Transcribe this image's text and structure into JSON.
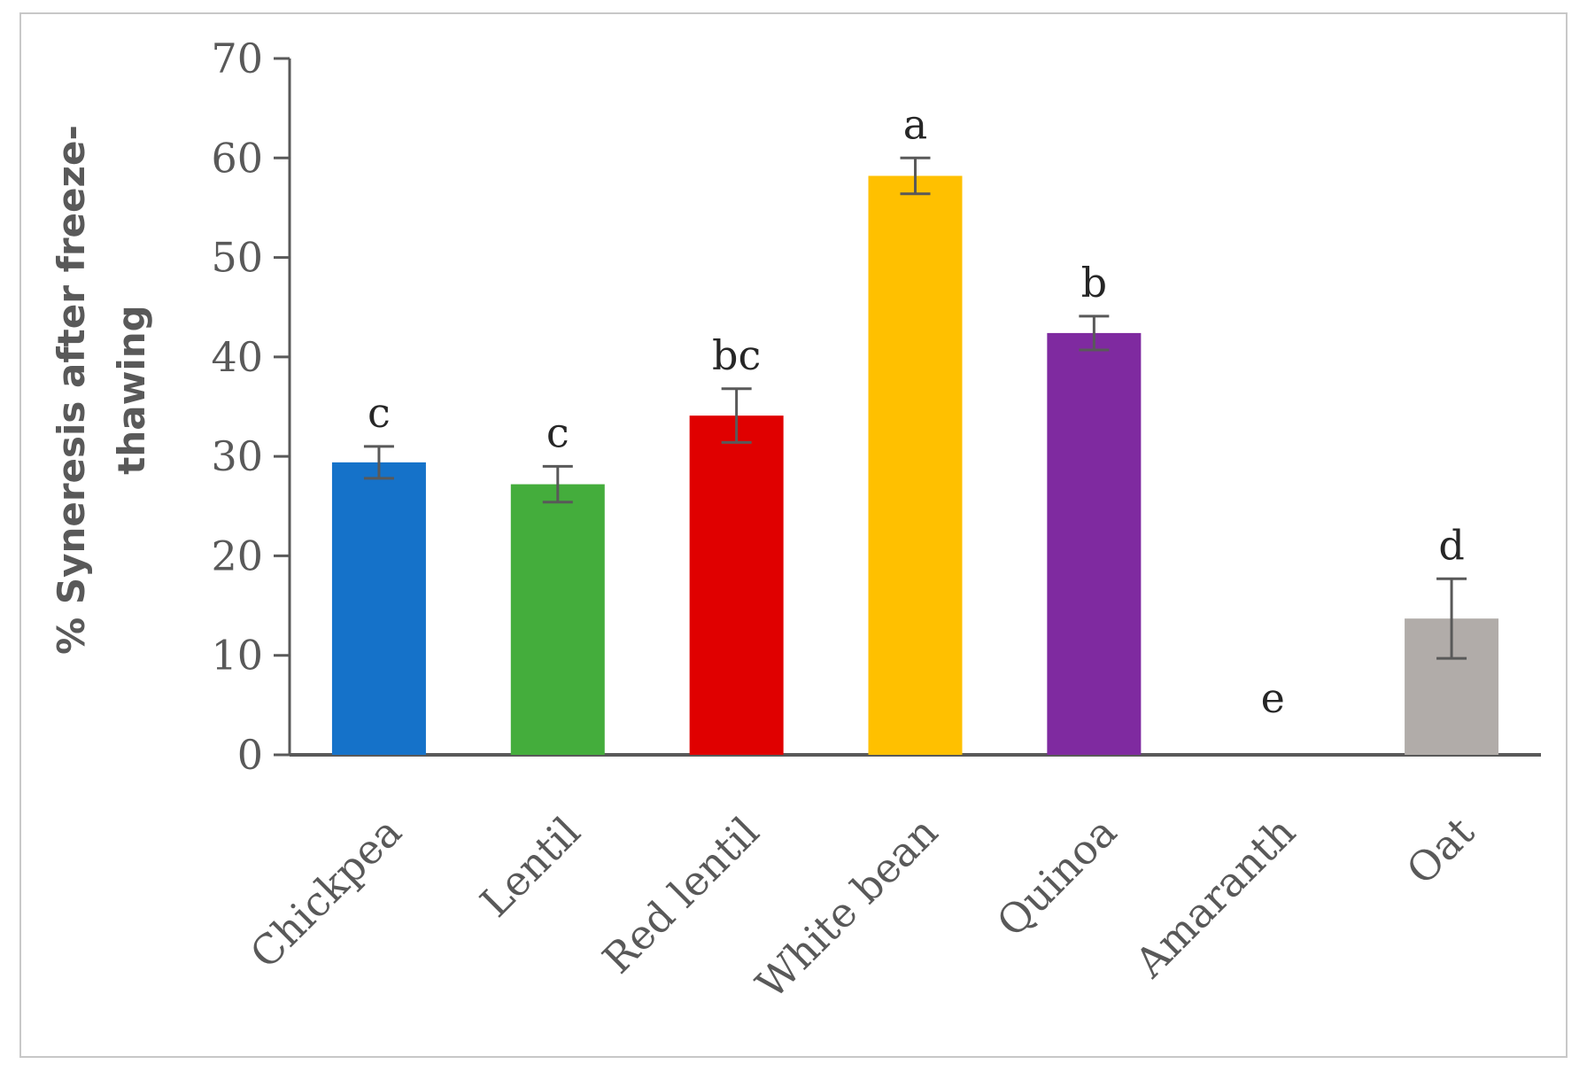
{
  "chart_data": {
    "type": "bar",
    "title": "",
    "xlabel": "",
    "ylabel_lines": [
      "% Syneresis after freeze-",
      "thawing"
    ],
    "ylim": [
      0,
      70
    ],
    "yticks": [
      0,
      10,
      20,
      30,
      40,
      50,
      60,
      70
    ],
    "grid": false,
    "legend": "none",
    "categories": [
      "Chickpea",
      "Lentil",
      "Red lentil",
      "White bean",
      "Quinoa",
      "Amaranth",
      "Oat"
    ],
    "values": [
      29.4,
      27.2,
      34.1,
      58.2,
      42.4,
      0,
      13.7
    ],
    "errors": [
      1.6,
      1.8,
      2.7,
      1.8,
      1.7,
      0,
      4.0
    ],
    "significance": [
      "c",
      "c",
      "bc",
      "a",
      "b",
      "e",
      "d"
    ],
    "colors": [
      "#1572c9",
      "#44ad3c",
      "#e00000",
      "#ffc000",
      "#7f2aa0",
      "#9e9e9e",
      "#b1aca9"
    ]
  }
}
